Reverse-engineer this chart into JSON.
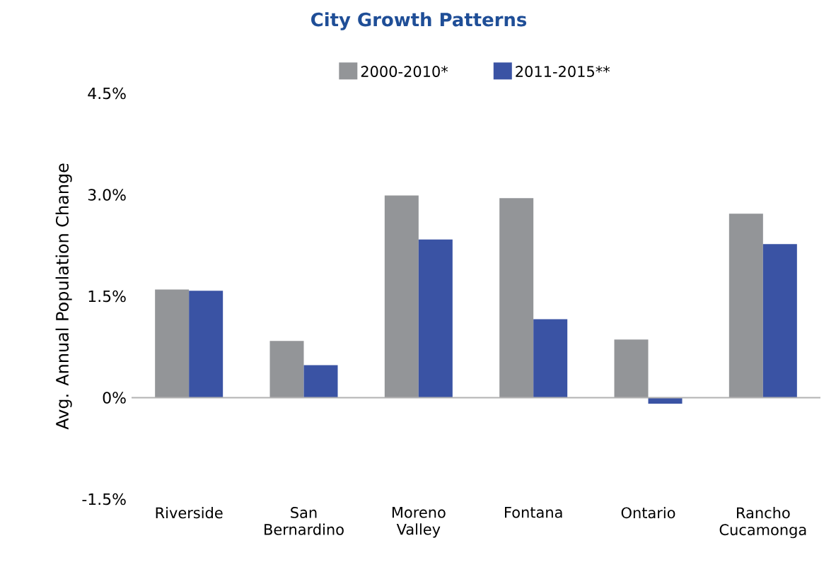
{
  "chart_data": {
    "type": "bar",
    "title": "City Growth Patterns",
    "ylabel": "Avg. Annual Population Change",
    "categories": [
      "Riverside",
      "San Bernardino",
      "Moreno Valley",
      "Fontana",
      "Ontario",
      "Rancho Cucamonga"
    ],
    "series": [
      {
        "name": "2000-2010*",
        "color": "#939598",
        "values": [
          1.6,
          0.84,
          2.99,
          2.95,
          0.86,
          2.72
        ]
      },
      {
        "name": "2011-2015**",
        "color": "#3a53a4",
        "values": [
          1.58,
          0.48,
          2.34,
          1.16,
          -0.09,
          2.27
        ]
      }
    ],
    "ylim": [
      -1.5,
      4.5
    ],
    "yticks": [
      {
        "value": -1.5,
        "label": "-1.5%"
      },
      {
        "value": 0,
        "label": "0%"
      },
      {
        "value": 1.5,
        "label": "1.5%"
      },
      {
        "value": 3.0,
        "label": "3.0%"
      },
      {
        "value": 4.5,
        "label": "4.5%"
      }
    ],
    "legend": "top"
  }
}
